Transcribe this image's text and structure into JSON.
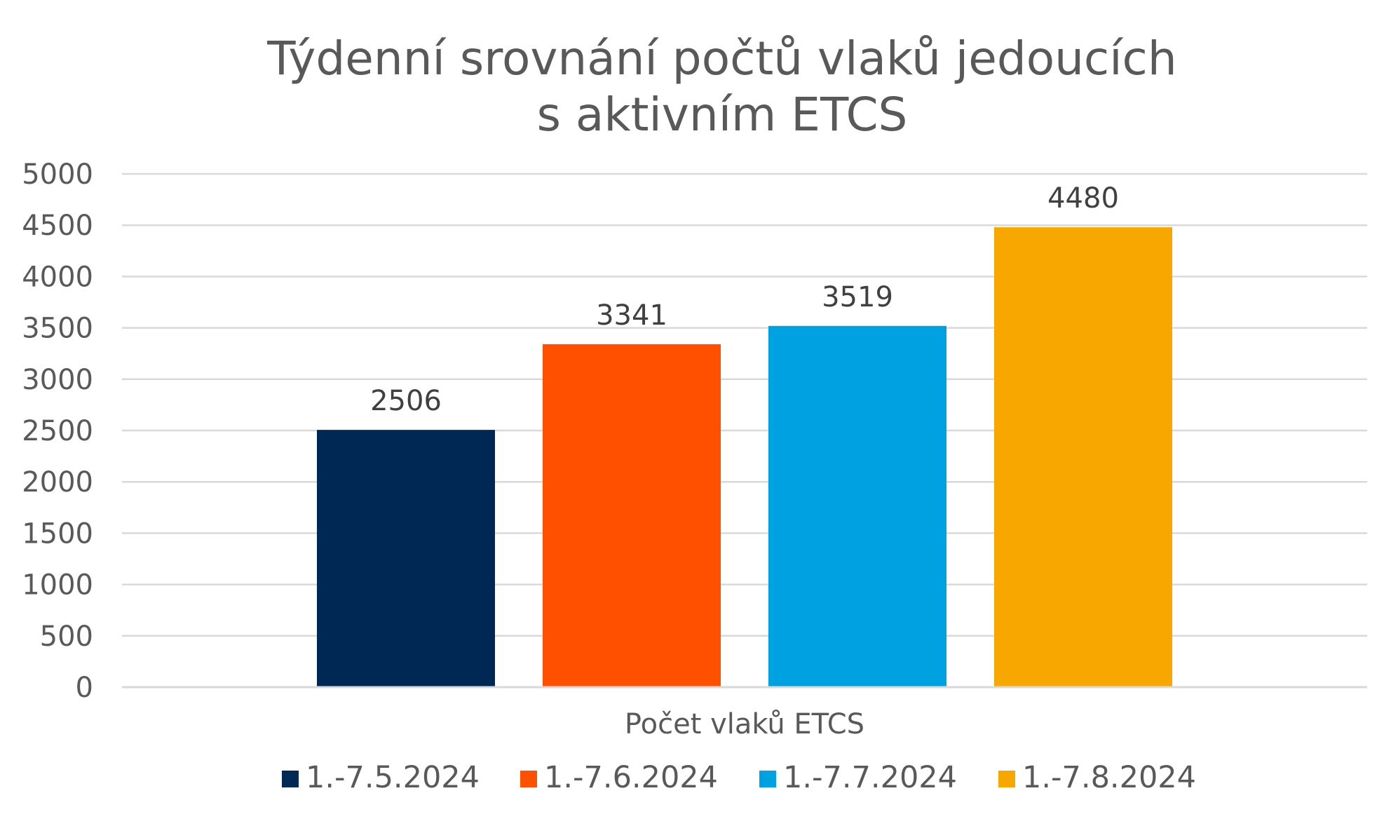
{
  "chart_data": {
    "type": "bar",
    "title_lines": [
      "Týdenní srovnání počtů vlaků jedoucích",
      "s aktivním ETCS"
    ],
    "categories": [
      "Počet vlaků ETCS"
    ],
    "series": [
      {
        "name": "1.-7.5.2024",
        "values": [
          2506
        ],
        "color": "#002855"
      },
      {
        "name": "1.-7.6.2024",
        "values": [
          3341
        ],
        "color": "#FF5000"
      },
      {
        "name": "1.-7.7.2024",
        "values": [
          3519
        ],
        "color": "#00A1E0"
      },
      {
        "name": "1.-7.8.2024",
        "values": [
          4480
        ],
        "color": "#F8A600"
      }
    ],
    "ylim": [
      0,
      5000
    ],
    "yticks": [
      0,
      500,
      1000,
      1500,
      2000,
      2500,
      3000,
      3500,
      4000,
      4500,
      5000
    ],
    "data_labels": true,
    "grid": "horizontal",
    "legend_position": "bottom",
    "xlabel": "",
    "ylabel": ""
  }
}
